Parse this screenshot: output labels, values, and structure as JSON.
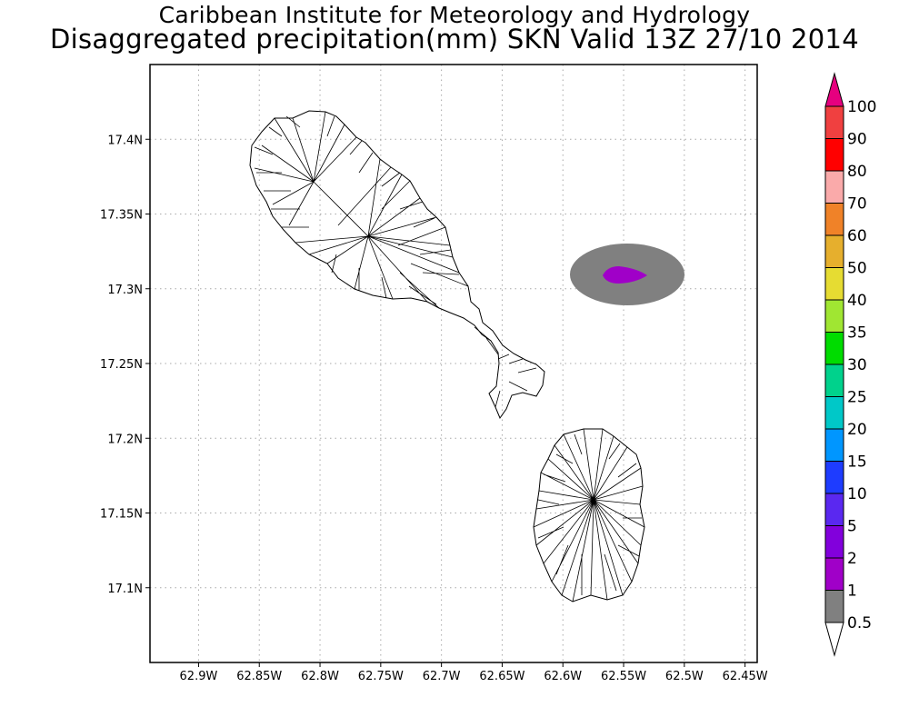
{
  "titles": {
    "line1": "Caribbean Institute for Meteorology and Hydrology",
    "line2": "Disaggregated precipitation(mm) SKN Valid 13Z 27/10 2014"
  },
  "map": {
    "lon_range": [
      -62.94,
      -62.44
    ],
    "lat_range": [
      17.05,
      17.45
    ],
    "x_ticks": [
      {
        "value": -62.9,
        "label": "62.9W"
      },
      {
        "value": -62.85,
        "label": "62.85W"
      },
      {
        "value": -62.8,
        "label": "62.8W"
      },
      {
        "value": -62.75,
        "label": "62.75W"
      },
      {
        "value": -62.7,
        "label": "62.7W"
      },
      {
        "value": -62.65,
        "label": "62.65W"
      },
      {
        "value": -62.6,
        "label": "62.6W"
      },
      {
        "value": -62.55,
        "label": "62.55W"
      },
      {
        "value": -62.5,
        "label": "62.5W"
      },
      {
        "value": -62.45,
        "label": "62.45W"
      }
    ],
    "y_ticks": [
      {
        "value": 17.1,
        "label": "17.1N"
      },
      {
        "value": 17.15,
        "label": "17.15N"
      },
      {
        "value": 17.2,
        "label": "17.2N"
      },
      {
        "value": 17.25,
        "label": "17.25N"
      },
      {
        "value": 17.3,
        "label": "17.3N"
      },
      {
        "value": 17.35,
        "label": "17.35N"
      },
      {
        "value": 17.4,
        "label": "17.4N"
      }
    ],
    "grid": true,
    "precip_area": {
      "center_lon": -62.555,
      "center_lat": 17.308,
      "outer_category": "0.5-1",
      "inner_category": "1-2"
    }
  },
  "colorbar": {
    "levels": [
      "0.5",
      "1",
      "2",
      "5",
      "10",
      "15",
      "20",
      "25",
      "30",
      "35",
      "40",
      "50",
      "60",
      "70",
      "80",
      "90",
      "100"
    ],
    "colors": [
      "#808080",
      "#a000c8",
      "#8200dc",
      "#5a28f0",
      "#1e3cff",
      "#0096ff",
      "#00c8c8",
      "#00d28c",
      "#00dc00",
      "#a0e632",
      "#e6dc32",
      "#e6af2d",
      "#f08228",
      "#faaaaa",
      "#ff0000",
      "#f04040",
      "#e6007f"
    ],
    "below_color": "#ffffff"
  }
}
